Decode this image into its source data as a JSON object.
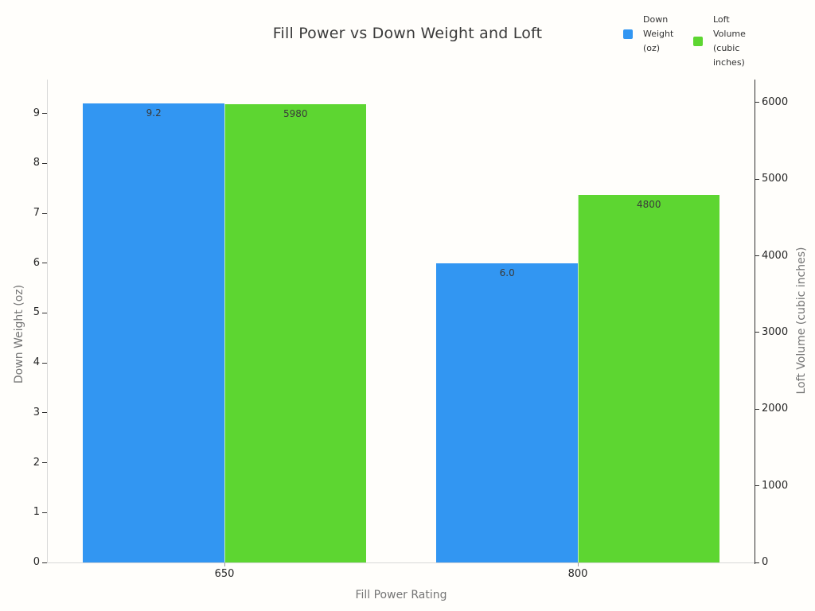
{
  "title": "Fill Power vs Down Weight and Loft",
  "legend": [
    {
      "label": "Down Weight (oz)",
      "color": "#3296f2"
    },
    {
      "label": "Loft Volume (cubic inches)",
      "color": "#5dd631"
    }
  ],
  "chart_data": {
    "type": "bar",
    "title": "Fill Power vs Down Weight and Loft",
    "categories": [
      "650",
      "800"
    ],
    "series": [
      {
        "name": "Down Weight (oz)",
        "axis": "left",
        "color": "#3296f2",
        "values": [
          9.2,
          6.0
        ],
        "value_labels": [
          "9.2",
          "6.0"
        ]
      },
      {
        "name": "Loft Volume (cubic inches)",
        "axis": "right",
        "color": "#5dd631",
        "values": [
          5980,
          4800
        ],
        "value_labels": [
          "5980",
          "4800"
        ]
      }
    ],
    "xlabel": "Fill Power Rating",
    "ylabel_left": "Down Weight (oz)",
    "ylabel_right": "Loft Volume (cubic inches)",
    "left_axis": {
      "min": 0,
      "max": 9.68,
      "ticks": [
        0,
        1,
        2,
        3,
        4,
        5,
        6,
        7,
        8,
        9
      ]
    },
    "right_axis": {
      "min": 0,
      "max": 6300,
      "ticks": [
        0,
        1000,
        2000,
        3000,
        4000,
        5000,
        6000
      ]
    },
    "grid": false,
    "legend_position": "top-right",
    "bar_value_labels_inside_top": true
  }
}
